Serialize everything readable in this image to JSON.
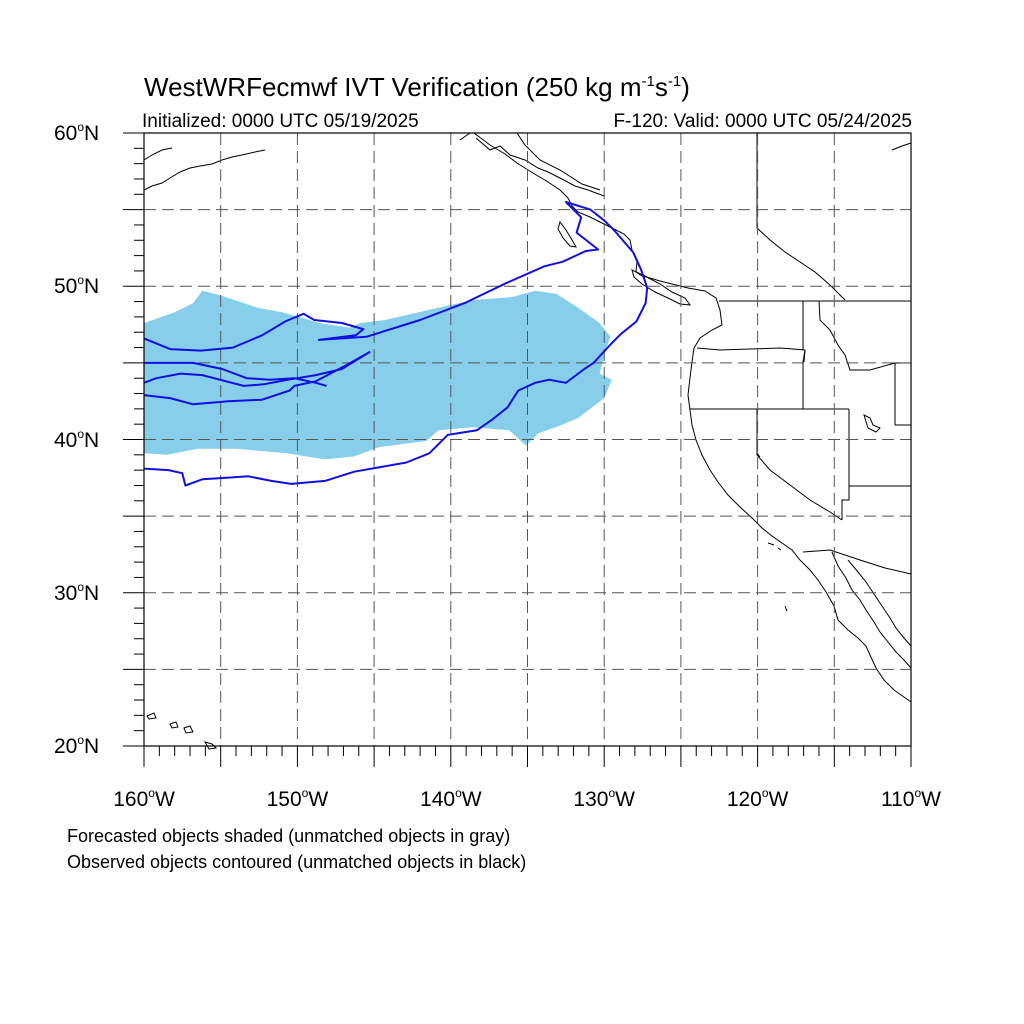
{
  "title": {
    "prefix": "WestWRFecmwf IVT Verification (250 kg m",
    "exp1": "-1",
    "mid": "s",
    "exp2": "-1",
    "suffix": ")"
  },
  "initialized": "Initialized: 0000 UTC 05/19/2025",
  "valid": "F-120: Valid: 0000 UTC 05/24/2025",
  "legend": {
    "forecast": "Forecasted objects shaded (unmatched objects in gray)",
    "observed": "Observed objects contoured (unmatched objects in black)"
  },
  "colors": {
    "forecast_fill": "#87ceeb",
    "observed_contour": "#1010e0",
    "coast": "#000000",
    "grid": "#555555"
  },
  "map": {
    "lon_min": -160,
    "lon_max": -110,
    "lat_min": 20,
    "lat_max": 60,
    "grid_lons": [
      -155,
      -150,
      -145,
      -140,
      -135,
      -130,
      -125,
      -120,
      -115
    ],
    "grid_lats": [
      25,
      30,
      35,
      40,
      45,
      50,
      55
    ],
    "lat_labels": [
      {
        "lat": 60,
        "num": "60",
        "deg": "o",
        "hem": "N"
      },
      {
        "lat": 50,
        "num": "50",
        "deg": "o",
        "hem": "N"
      },
      {
        "lat": 40,
        "num": "40",
        "deg": "o",
        "hem": "N"
      },
      {
        "lat": 30,
        "num": "30",
        "deg": "o",
        "hem": "N"
      },
      {
        "lat": 20,
        "num": "20",
        "deg": "o",
        "hem": "N"
      }
    ],
    "lon_labels": [
      {
        "lon": -160,
        "num": "160",
        "deg": "o",
        "hem": "W"
      },
      {
        "lon": -150,
        "num": "150",
        "deg": "o",
        "hem": "W"
      },
      {
        "lon": -140,
        "num": "140",
        "deg": "o",
        "hem": "W"
      },
      {
        "lon": -130,
        "num": "130",
        "deg": "o",
        "hem": "W"
      },
      {
        "lon": -120,
        "num": "120",
        "deg": "o",
        "hem": "W"
      },
      {
        "lon": -110,
        "num": "110",
        "deg": "o",
        "hem": "W"
      }
    ]
  },
  "forecast_object": [
    [
      -160,
      47.6
    ],
    [
      -158,
      48.3
    ],
    [
      -156.8,
      48.9
    ],
    [
      -156.2,
      49.7
    ],
    [
      -155,
      49.4
    ],
    [
      -152.6,
      48.6
    ],
    [
      -151,
      48.3
    ],
    [
      -149.2,
      47.8
    ],
    [
      -148.6,
      47.6
    ],
    [
      -146.6,
      47.3
    ],
    [
      -145.9,
      47.6
    ],
    [
      -144.3,
      47.8
    ],
    [
      -140.4,
      48.7
    ],
    [
      -138.5,
      49.1
    ],
    [
      -136,
      49.3
    ],
    [
      -134.5,
      49.7
    ],
    [
      -133.1,
      49.5
    ],
    [
      -131.7,
      48.6
    ],
    [
      -130.3,
      47.6
    ],
    [
      -129.6,
      46.7
    ],
    [
      -129.9,
      45.8
    ],
    [
      -130.3,
      44.3
    ],
    [
      -129.5,
      43.9
    ],
    [
      -130,
      42.7
    ],
    [
      -131.7,
      41.4
    ],
    [
      -132.9,
      40.9
    ],
    [
      -134.3,
      40.4
    ],
    [
      -135.1,
      39.6
    ],
    [
      -136.2,
      40.6
    ],
    [
      -138.6,
      40.8
    ],
    [
      -140.8,
      40.6
    ],
    [
      -141.6,
      39.9
    ],
    [
      -144.7,
      39.5
    ],
    [
      -146.3,
      38.9
    ],
    [
      -148.2,
      38.7
    ],
    [
      -150.7,
      39.1
    ],
    [
      -154,
      39.4
    ],
    [
      -156.5,
      39.4
    ],
    [
      -158.5,
      39
    ],
    [
      -160,
      39.1
    ]
  ],
  "observed_contours": [
    [
      [
        -160,
        46.6
      ],
      [
        -158.3,
        45.9
      ],
      [
        -156.3,
        45.8
      ],
      [
        -154.2,
        46.0
      ],
      [
        -152.3,
        46.8
      ],
      [
        -150.8,
        47.7
      ],
      [
        -149.6,
        48.2
      ],
      [
        -148.9,
        47.8
      ],
      [
        -147.1,
        47.6
      ],
      [
        -145.7,
        47.2
      ],
      [
        -146.2,
        46.8
      ],
      [
        -148.6,
        46.5
      ],
      [
        -145.5,
        46.7
      ],
      [
        -142,
        47.8
      ],
      [
        -139.1,
        48.9
      ],
      [
        -136.4,
        50.2
      ],
      [
        -133.9,
        51.3
      ],
      [
        -132.7,
        51.6
      ],
      [
        -131.2,
        52.3
      ],
      [
        -130.4,
        52.4
      ],
      [
        -131.8,
        53.5
      ],
      [
        -131.5,
        54.5
      ],
      [
        -132.5,
        55.5
      ],
      [
        -130.9,
        55.0
      ],
      [
        -130.0,
        54.3
      ],
      [
        -129.3,
        53.6
      ],
      [
        -128.1,
        52.2
      ],
      [
        -127.6,
        51.1
      ],
      [
        -127.2,
        49.9
      ],
      [
        -127.3,
        48.9
      ],
      [
        -127.9,
        47.7
      ],
      [
        -128.9,
        46.9
      ],
      [
        -129.5,
        46.3
      ],
      [
        -130.7,
        45.0
      ],
      [
        -131.3,
        44.6
      ],
      [
        -132.5,
        43.7
      ],
      [
        -133.6,
        43.9
      ],
      [
        -134.5,
        43.7
      ],
      [
        -135.6,
        43.2
      ],
      [
        -136.3,
        42.1
      ],
      [
        -137.3,
        41.3
      ],
      [
        -138.3,
        40.6
      ],
      [
        -140.2,
        40.3
      ],
      [
        -141.4,
        39.1
      ],
      [
        -142.9,
        38.5
      ],
      [
        -144.6,
        38.2
      ],
      [
        -146.3,
        37.9
      ],
      [
        -148.2,
        37.3
      ],
      [
        -150.4,
        37.1
      ],
      [
        -151.7,
        37.3
      ],
      [
        -153.2,
        37.6
      ],
      [
        -154.6,
        37.5
      ],
      [
        -156.2,
        37.4
      ],
      [
        -157.3,
        37.0
      ],
      [
        -157.5,
        37.8
      ],
      [
        -158.4,
        38.0
      ],
      [
        -160,
        38.1
      ]
    ],
    [
      [
        -160,
        43.7
      ],
      [
        -159.2,
        44.0
      ],
      [
        -157.6,
        44.3
      ],
      [
        -156.2,
        44.2
      ],
      [
        -153.5,
        43.5
      ],
      [
        -152.2,
        43.6
      ],
      [
        -150.6,
        43.9
      ],
      [
        -148.8,
        44.2
      ],
      [
        -147.1,
        44.6
      ],
      [
        -145.3,
        45.7
      ],
      [
        -146.9,
        44.8
      ],
      [
        -148.8,
        43.8
      ],
      [
        -150.2,
        43.5
      ],
      [
        -150.5,
        43.2
      ],
      [
        -152.3,
        42.6
      ],
      [
        -154.5,
        42.5
      ],
      [
        -156.8,
        42.3
      ],
      [
        -158.3,
        42.7
      ],
      [
        -160,
        42.9
      ]
    ],
    [
      [
        -160,
        45.0
      ],
      [
        -158.5,
        45.0
      ],
      [
        -156.8,
        45.0
      ],
      [
        -154.9,
        44.6
      ],
      [
        -153.3,
        44.0
      ],
      [
        -151.8,
        43.9
      ],
      [
        -150.2,
        44.0
      ],
      [
        -148.8,
        43.7
      ],
      [
        -148.1,
        43.5
      ]
    ]
  ]
}
